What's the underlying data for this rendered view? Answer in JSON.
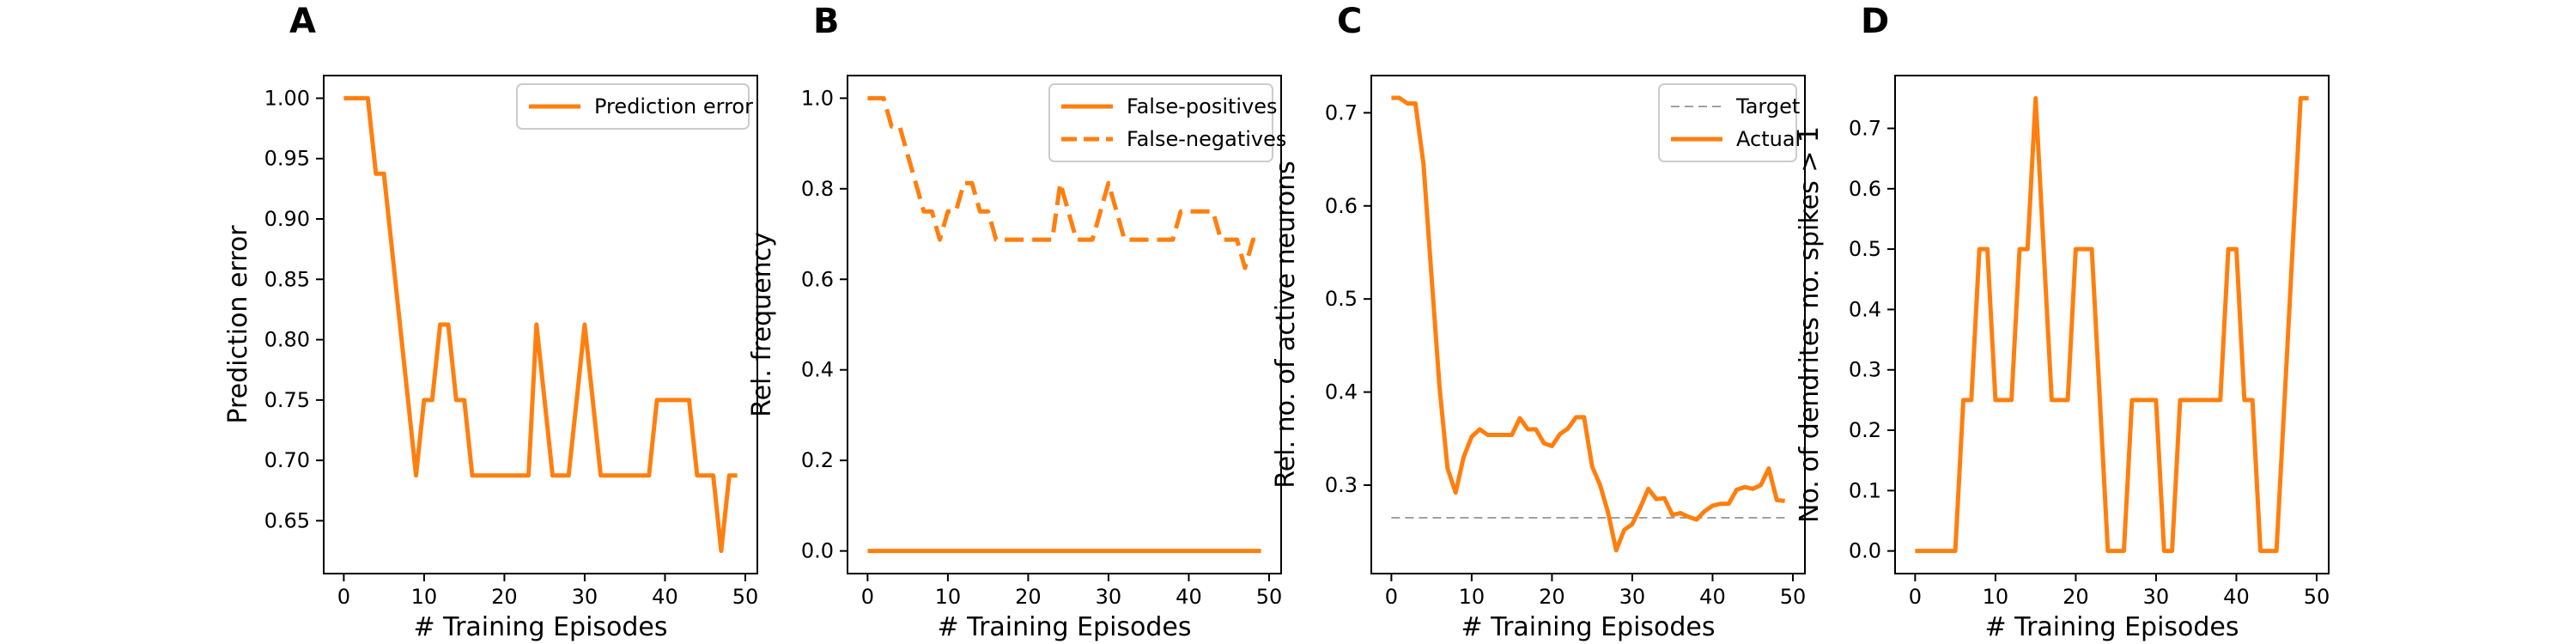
{
  "colors": {
    "orange": "#ff7f0e",
    "gray": "#808080",
    "axis": "#000000",
    "legend_border": "#cccccc"
  },
  "chart_data": [
    {
      "panel_letter": "A",
      "type": "line",
      "xlabel": "# Training Episodes",
      "ylabel": "Prediction error",
      "xlim": [
        -2.5,
        51.5
      ],
      "ylim": [
        0.6062,
        1.0188
      ],
      "xticks": [
        0,
        10,
        20,
        30,
        40,
        50
      ],
      "yticks": [
        0.65,
        0.7,
        0.75,
        0.8,
        0.85,
        0.9,
        0.95,
        1.0
      ],
      "ytick_labels": [
        "0.65",
        "0.70",
        "0.75",
        "0.80",
        "0.85",
        "0.90",
        "0.95",
        "1.00"
      ],
      "legend": {
        "position": "upper right"
      },
      "series": [
        {
          "name": "Prediction error",
          "color": "#ff7f0e",
          "dash": "solid",
          "x": [
            0,
            1,
            2,
            3,
            4,
            5,
            6,
            7,
            8,
            9,
            10,
            11,
            12,
            13,
            14,
            15,
            16,
            17,
            18,
            19,
            20,
            21,
            22,
            23,
            24,
            25,
            26,
            27,
            28,
            29,
            30,
            31,
            32,
            33,
            34,
            35,
            36,
            37,
            38,
            39,
            40,
            41,
            42,
            43,
            44,
            45,
            46,
            47,
            48,
            49
          ],
          "y": [
            1.0,
            1.0,
            1.0,
            1.0,
            0.9375,
            0.9375,
            0.875,
            0.8125,
            0.75,
            0.6875,
            0.75,
            0.75,
            0.8125,
            0.8125,
            0.75,
            0.75,
            0.6875,
            0.6875,
            0.6875,
            0.6875,
            0.6875,
            0.6875,
            0.6875,
            0.6875,
            0.8125,
            0.75,
            0.6875,
            0.6875,
            0.6875,
            0.75,
            0.8125,
            0.75,
            0.6875,
            0.6875,
            0.6875,
            0.6875,
            0.6875,
            0.6875,
            0.6875,
            0.75,
            0.75,
            0.75,
            0.75,
            0.75,
            0.6875,
            0.6875,
            0.6875,
            0.625,
            0.6875,
            0.6875
          ]
        }
      ]
    },
    {
      "panel_letter": "B",
      "type": "line",
      "xlabel": "# Training Episodes",
      "ylabel": "Rel. frequency",
      "xlim": [
        -2.5,
        51.5
      ],
      "ylim": [
        -0.05,
        1.05
      ],
      "xticks": [
        0,
        10,
        20,
        30,
        40,
        50
      ],
      "yticks": [
        0.0,
        0.2,
        0.4,
        0.6,
        0.8,
        1.0
      ],
      "ytick_labels": [
        "0.0",
        "0.2",
        "0.4",
        "0.6",
        "0.8",
        "1.0"
      ],
      "legend": {
        "position": "upper right"
      },
      "series": [
        {
          "name": "False-positives",
          "color": "#ff7f0e",
          "dash": "solid",
          "x": [
            0,
            49
          ],
          "y": [
            0.0,
            0.0
          ]
        },
        {
          "name": "False-negatives",
          "color": "#ff7f0e",
          "dash": "dashed",
          "x": [
            0,
            1,
            2,
            3,
            4,
            5,
            6,
            7,
            8,
            9,
            10,
            11,
            12,
            13,
            14,
            15,
            16,
            17,
            18,
            19,
            20,
            21,
            22,
            23,
            24,
            25,
            26,
            27,
            28,
            29,
            30,
            31,
            32,
            33,
            34,
            35,
            36,
            37,
            38,
            39,
            40,
            41,
            42,
            43,
            44,
            45,
            46,
            47,
            48,
            49
          ],
          "y": [
            1.0,
            1.0,
            1.0,
            0.9375,
            0.9375,
            0.875,
            0.8125,
            0.75,
            0.75,
            0.6875,
            0.75,
            0.75,
            0.8125,
            0.8125,
            0.75,
            0.75,
            0.6875,
            0.6875,
            0.6875,
            0.6875,
            0.6875,
            0.6875,
            0.6875,
            0.6875,
            0.8125,
            0.75,
            0.6875,
            0.6875,
            0.6875,
            0.75,
            0.8125,
            0.75,
            0.6875,
            0.6875,
            0.6875,
            0.6875,
            0.6875,
            0.6875,
            0.6875,
            0.75,
            0.75,
            0.75,
            0.75,
            0.75,
            0.6875,
            0.6875,
            0.6875,
            0.625,
            0.6875,
            0.6875
          ]
        }
      ]
    },
    {
      "panel_letter": "C",
      "type": "line",
      "xlabel": "# Training Episodes",
      "ylabel": "Rel. no. of active neurons",
      "xlim": [
        -2.5,
        51.5
      ],
      "ylim": [
        0.205,
        0.74
      ],
      "xticks": [
        0,
        10,
        20,
        30,
        40,
        50
      ],
      "yticks": [
        0.3,
        0.4,
        0.5,
        0.6,
        0.7
      ],
      "ytick_labels": [
        "0.3",
        "0.4",
        "0.5",
        "0.6",
        "0.7"
      ],
      "legend": {
        "position": "upper right"
      },
      "series": [
        {
          "name": "Target",
          "color": "#808080",
          "dash": "dashed",
          "width": 1.5,
          "x": [
            0,
            49
          ],
          "y": [
            0.265,
            0.265
          ]
        },
        {
          "name": "Actual",
          "color": "#ff7f0e",
          "dash": "solid",
          "x": [
            0,
            1,
            2,
            3,
            4,
            5,
            6,
            7,
            8,
            9,
            10,
            11,
            12,
            13,
            14,
            15,
            16,
            17,
            18,
            19,
            20,
            21,
            22,
            23,
            24,
            25,
            26,
            27,
            28,
            29,
            30,
            31,
            32,
            33,
            34,
            35,
            36,
            37,
            38,
            39,
            40,
            41,
            42,
            43,
            44,
            45,
            46,
            47,
            48,
            49
          ],
          "y": [
            0.716,
            0.716,
            0.71,
            0.71,
            0.645,
            0.525,
            0.405,
            0.318,
            0.292,
            0.33,
            0.352,
            0.36,
            0.354,
            0.354,
            0.354,
            0.354,
            0.372,
            0.36,
            0.36,
            0.345,
            0.342,
            0.355,
            0.361,
            0.373,
            0.373,
            0.32,
            0.3,
            0.27,
            0.23,
            0.252,
            0.258,
            0.276,
            0.296,
            0.285,
            0.286,
            0.268,
            0.27,
            0.266,
            0.263,
            0.272,
            0.278,
            0.28,
            0.28,
            0.295,
            0.298,
            0.296,
            0.3,
            0.318,
            0.284,
            0.283
          ]
        }
      ]
    },
    {
      "panel_letter": "D",
      "type": "line",
      "xlabel": "# Training Episodes",
      "ylabel": "No. of dendrites no. spikes > 1",
      "xlim": [
        -2.5,
        51.5
      ],
      "ylim": [
        -0.0375,
        0.7875
      ],
      "xticks": [
        0,
        10,
        20,
        30,
        40,
        50
      ],
      "yticks": [
        0.0,
        0.1,
        0.2,
        0.3,
        0.4,
        0.5,
        0.6,
        0.7
      ],
      "ytick_labels": [
        "0.0",
        "0.1",
        "0.2",
        "0.3",
        "0.4",
        "0.5",
        "0.6",
        "0.7"
      ],
      "legend": null,
      "series": [
        {
          "name": "",
          "color": "#ff7f0e",
          "dash": "solid",
          "x": [
            0,
            1,
            2,
            3,
            4,
            5,
            6,
            7,
            8,
            9,
            10,
            11,
            12,
            13,
            14,
            15,
            16,
            17,
            18,
            19,
            20,
            21,
            22,
            23,
            24,
            25,
            26,
            27,
            28,
            29,
            30,
            31,
            32,
            33,
            34,
            35,
            36,
            37,
            38,
            39,
            40,
            41,
            42,
            43,
            44,
            45,
            46,
            47,
            48,
            49
          ],
          "y": [
            0,
            0,
            0,
            0,
            0,
            0,
            0.25,
            0.25,
            0.5,
            0.5,
            0.25,
            0.25,
            0.25,
            0.5,
            0.5,
            0.75,
            0.5,
            0.25,
            0.25,
            0.25,
            0.5,
            0.5,
            0.5,
            0.25,
            0,
            0,
            0,
            0.25,
            0.25,
            0.25,
            0.25,
            0,
            0,
            0.25,
            0.25,
            0.25,
            0.25,
            0.25,
            0.25,
            0.5,
            0.5,
            0.25,
            0.25,
            0,
            0,
            0,
            0.25,
            0.5,
            0.75,
            0.75
          ]
        }
      ]
    }
  ]
}
